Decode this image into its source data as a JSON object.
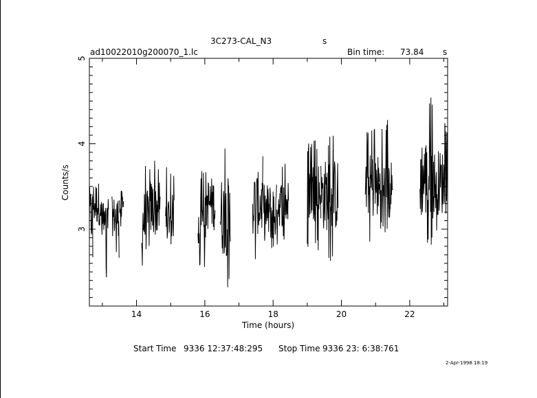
{
  "header": {
    "object_name": "3C273-CAL_N3",
    "object_unit": "s",
    "file_name": "ad10022010g200070_1.lc",
    "bin_time_label": "Bin time:",
    "bin_time_value": "73.84",
    "bin_time_unit": "s"
  },
  "footer": {
    "start_label": "Start Time",
    "start_value": "9336 12:37:48:295",
    "stop_label": "Stop Time",
    "stop_value": "9336 23: 6:38:761",
    "timestamp": "2-Apr-1998 18:19"
  },
  "chart_data": {
    "type": "line",
    "title": "3C273-CAL_N3",
    "xlabel": "Time (hours)",
    "ylabel": "Counts/s",
    "xlim": [
      12.62,
      23.11
    ],
    "ylim": [
      2.1,
      5.0
    ],
    "x_ticks": [
      14,
      16,
      18,
      20,
      22
    ],
    "y_ticks": [
      3,
      4,
      5
    ],
    "grid": false,
    "series": [
      {
        "segments": [
          {
            "x_start": 12.62,
            "x_end": 12.72,
            "mean": 3.15,
            "min": 2.6,
            "max": 3.85
          },
          {
            "x_start": 12.72,
            "x_end": 12.95,
            "mean": 3.3,
            "min": 2.8,
            "max": 3.75
          },
          {
            "x_start": 12.95,
            "x_end": 13.18,
            "mean": 3.05,
            "min": 2.4,
            "max": 3.4
          },
          {
            "x_start": 13.28,
            "x_end": 13.5,
            "mean": 3.15,
            "min": 2.65,
            "max": 3.5
          },
          {
            "x_start": 13.5,
            "x_end": 13.62,
            "mean": 3.25,
            "min": 2.9,
            "max": 3.65
          },
          {
            "x_start": 14.15,
            "x_end": 14.4,
            "mean": 3.1,
            "min": 2.5,
            "max": 3.8
          },
          {
            "x_start": 14.4,
            "x_end": 14.7,
            "mean": 3.25,
            "min": 2.6,
            "max": 3.85
          },
          {
            "x_start": 14.85,
            "x_end": 15.1,
            "mean": 3.15,
            "min": 2.8,
            "max": 3.75
          },
          {
            "x_start": 15.8,
            "x_end": 16.05,
            "mean": 3.1,
            "min": 2.55,
            "max": 3.7
          },
          {
            "x_start": 16.05,
            "x_end": 16.3,
            "mean": 3.3,
            "min": 2.7,
            "max": 3.85
          },
          {
            "x_start": 16.45,
            "x_end": 16.75,
            "mean": 3.15,
            "min": 2.3,
            "max": 4.0
          },
          {
            "x_start": 17.4,
            "x_end": 17.7,
            "mean": 3.3,
            "min": 2.55,
            "max": 3.9
          },
          {
            "x_start": 17.7,
            "x_end": 18.1,
            "mean": 3.2,
            "min": 2.7,
            "max": 3.95
          },
          {
            "x_start": 18.1,
            "x_end": 18.45,
            "mean": 3.3,
            "min": 2.8,
            "max": 3.8
          },
          {
            "x_start": 19.0,
            "x_end": 19.4,
            "mean": 3.45,
            "min": 2.75,
            "max": 4.05
          },
          {
            "x_start": 19.4,
            "x_end": 19.9,
            "mean": 3.4,
            "min": 2.55,
            "max": 4.1
          },
          {
            "x_start": 20.7,
            "x_end": 21.1,
            "mean": 3.5,
            "min": 2.85,
            "max": 4.25
          },
          {
            "x_start": 21.1,
            "x_end": 21.5,
            "mean": 3.45,
            "min": 2.95,
            "max": 4.3
          },
          {
            "x_start": 22.3,
            "x_end": 22.7,
            "mean": 3.6,
            "min": 2.8,
            "max": 4.55
          },
          {
            "x_start": 22.7,
            "x_end": 23.11,
            "mean": 3.55,
            "min": 2.85,
            "max": 4.25
          }
        ]
      }
    ]
  }
}
